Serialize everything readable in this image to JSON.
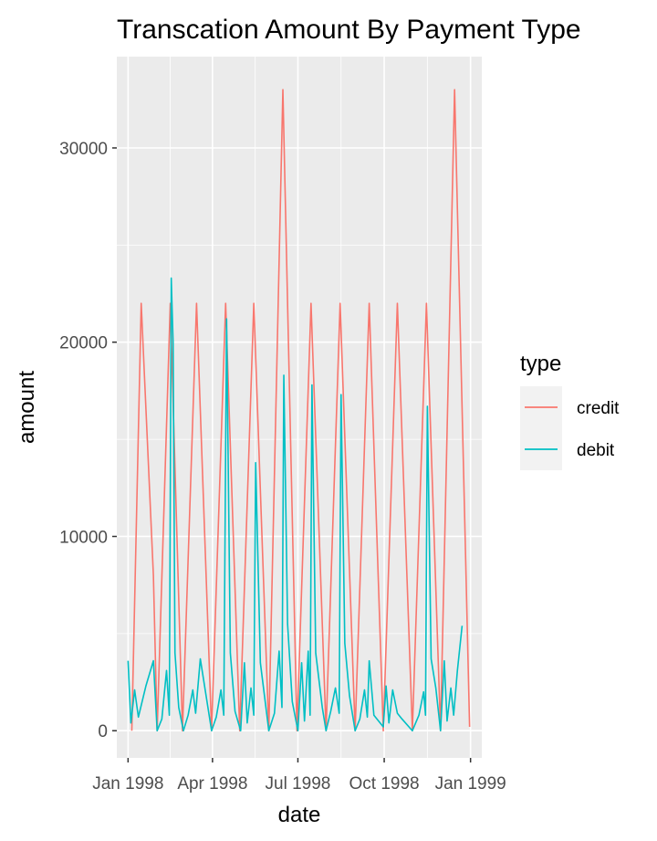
{
  "chart_data": {
    "type": "line",
    "title": "Transcation Amount By Payment Type",
    "xlabel": "date",
    "ylabel": "amount",
    "x_ticks": [
      {
        "date": "1998-01-01",
        "label": "Jan 1998"
      },
      {
        "date": "1998-04-01",
        "label": "Apr 1998"
      },
      {
        "date": "1998-07-01",
        "label": "Jul 1998"
      },
      {
        "date": "1998-10-01",
        "label": "Oct 1998"
      },
      {
        "date": "1999-01-01",
        "label": "Jan 1999"
      }
    ],
    "y_ticks": [
      0,
      10000,
      20000,
      30000
    ],
    "xlim": [
      "1997-12-20",
      "1999-01-13"
    ],
    "ylim": [
      -1400,
      34700
    ],
    "grid": true,
    "legend": {
      "title": "type",
      "position": "right"
    },
    "colors": {
      "credit": "#F8766D",
      "debit": "#00BFC4",
      "panel": "#EBEBEB",
      "grid": "#FFFFFF",
      "legend_key": "#F2F2F2"
    },
    "series": [
      {
        "name": "credit",
        "color": "#F8766D",
        "points": [
          [
            "1998-01-05",
            0
          ],
          [
            "1998-01-15",
            22000
          ],
          [
            "1998-01-28",
            8000
          ],
          [
            "1998-02-01",
            0
          ],
          [
            "1998-02-15",
            22000
          ],
          [
            "1998-02-28",
            0
          ],
          [
            "1998-03-15",
            22000
          ],
          [
            "1998-03-31",
            0
          ],
          [
            "1998-04-15",
            22000
          ],
          [
            "1998-04-30",
            0
          ],
          [
            "1998-05-15",
            22000
          ],
          [
            "1998-05-31",
            0
          ],
          [
            "1998-06-15",
            33000
          ],
          [
            "1998-06-30",
            0
          ],
          [
            "1998-07-15",
            22000
          ],
          [
            "1998-07-31",
            0
          ],
          [
            "1998-08-15",
            22000
          ],
          [
            "1998-08-31",
            0
          ],
          [
            "1998-09-15",
            22000
          ],
          [
            "1998-09-30",
            0
          ],
          [
            "1998-10-15",
            22000
          ],
          [
            "1998-10-31",
            0
          ],
          [
            "1998-11-15",
            22000
          ],
          [
            "1998-11-30",
            0
          ],
          [
            "1998-12-15",
            33000
          ],
          [
            "1998-12-31",
            200
          ]
        ]
      },
      {
        "name": "debit",
        "color": "#00BFC4",
        "points": [
          [
            "1998-01-01",
            3600
          ],
          [
            "1998-01-04",
            400
          ],
          [
            "1998-01-08",
            2100
          ],
          [
            "1998-01-12",
            700
          ],
          [
            "1998-01-20",
            2300
          ],
          [
            "1998-01-28",
            3600
          ],
          [
            "1998-02-01",
            0
          ],
          [
            "1998-02-06",
            600
          ],
          [
            "1998-02-11",
            3100
          ],
          [
            "1998-02-14",
            800
          ],
          [
            "1998-02-16",
            23300
          ],
          [
            "1998-02-18",
            20000
          ],
          [
            "1998-02-20",
            4000
          ],
          [
            "1998-02-24",
            1200
          ],
          [
            "1998-03-01",
            0
          ],
          [
            "1998-03-06",
            800
          ],
          [
            "1998-03-11",
            2100
          ],
          [
            "1998-03-14",
            900
          ],
          [
            "1998-03-19",
            3700
          ],
          [
            "1998-03-31",
            0
          ],
          [
            "1998-04-05",
            700
          ],
          [
            "1998-04-10",
            2100
          ],
          [
            "1998-04-13",
            800
          ],
          [
            "1998-04-16",
            21200
          ],
          [
            "1998-04-20",
            4000
          ],
          [
            "1998-04-25",
            1000
          ],
          [
            "1998-05-01",
            0
          ],
          [
            "1998-05-05",
            3500
          ],
          [
            "1998-05-08",
            400
          ],
          [
            "1998-05-12",
            2200
          ],
          [
            "1998-05-15",
            800
          ],
          [
            "1998-05-17",
            13800
          ],
          [
            "1998-05-22",
            3500
          ],
          [
            "1998-05-31",
            0
          ],
          [
            "1998-06-06",
            900
          ],
          [
            "1998-06-11",
            4100
          ],
          [
            "1998-06-14",
            1200
          ],
          [
            "1998-06-16",
            18300
          ],
          [
            "1998-06-20",
            5500
          ],
          [
            "1998-06-25",
            1500
          ],
          [
            "1998-07-01",
            0
          ],
          [
            "1998-07-05",
            3500
          ],
          [
            "1998-07-08",
            500
          ],
          [
            "1998-07-12",
            4100
          ],
          [
            "1998-07-14",
            800
          ],
          [
            "1998-07-16",
            17800
          ],
          [
            "1998-07-20",
            4000
          ],
          [
            "1998-07-27",
            1200
          ],
          [
            "1998-07-31",
            0
          ],
          [
            "1998-08-05",
            1000
          ],
          [
            "1998-08-10",
            2200
          ],
          [
            "1998-08-14",
            900
          ],
          [
            "1998-08-16",
            17300
          ],
          [
            "1998-08-20",
            4500
          ],
          [
            "1998-08-25",
            1800
          ],
          [
            "1998-08-31",
            0
          ],
          [
            "1998-09-05",
            600
          ],
          [
            "1998-09-10",
            2100
          ],
          [
            "1998-09-13",
            700
          ],
          [
            "1998-09-15",
            3600
          ],
          [
            "1998-09-20",
            800
          ],
          [
            "1998-09-30",
            200
          ],
          [
            "1998-10-03",
            2300
          ],
          [
            "1998-10-06",
            400
          ],
          [
            "1998-10-10",
            2100
          ],
          [
            "1998-10-15",
            900
          ],
          [
            "1998-10-20",
            600
          ],
          [
            "1998-10-31",
            0
          ],
          [
            "1998-11-07",
            800
          ],
          [
            "1998-11-12",
            2000
          ],
          [
            "1998-11-14",
            800
          ],
          [
            "1998-11-16",
            16700
          ],
          [
            "1998-11-20",
            3700
          ],
          [
            "1998-11-25",
            2200
          ],
          [
            "1998-11-30",
            0
          ],
          [
            "1998-12-04",
            3600
          ],
          [
            "1998-12-07",
            500
          ],
          [
            "1998-12-11",
            2200
          ],
          [
            "1998-12-14",
            800
          ],
          [
            "1998-12-18",
            3100
          ],
          [
            "1998-12-23",
            5400
          ]
        ]
      }
    ]
  }
}
